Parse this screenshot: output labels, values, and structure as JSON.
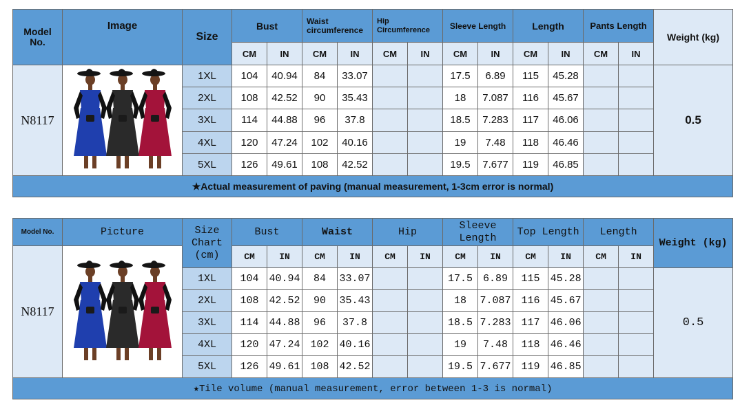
{
  "table1": {
    "header": {
      "model_no": "Model\nNo.",
      "image": "Image",
      "size": "Size",
      "bust": "Bust",
      "waist": "Waist\ncircumference",
      "hip": "Hip\nCircumference",
      "sleeve": "Sleeve Length",
      "length": "Length",
      "pants_length": "Pants Length",
      "weight": "Weight (kg)"
    },
    "units": [
      "CM",
      "IN",
      "CM",
      "IN",
      "CM",
      "IN",
      "CM",
      "IN",
      "CM",
      "IN",
      "CM",
      "IN"
    ],
    "model": "N8117",
    "weight_value": "0.5",
    "rows": [
      {
        "size": "1XL",
        "bust_cm": "104",
        "bust_in": "40.94",
        "waist_cm": "84",
        "waist_in": "33.07",
        "sleeve_cm": "17.5",
        "sleeve_in": "6.89",
        "len_cm": "115",
        "len_in": "45.28"
      },
      {
        "size": "2XL",
        "bust_cm": "108",
        "bust_in": "42.52",
        "waist_cm": "90",
        "waist_in": "35.43",
        "sleeve_cm": "18",
        "sleeve_in": "7.087",
        "len_cm": "116",
        "len_in": "45.67"
      },
      {
        "size": "3XL",
        "bust_cm": "114",
        "bust_in": "44.88",
        "waist_cm": "96",
        "waist_in": "37.8",
        "sleeve_cm": "18.5",
        "sleeve_in": "7.283",
        "len_cm": "117",
        "len_in": "46.06"
      },
      {
        "size": "4XL",
        "bust_cm": "120",
        "bust_in": "47.24",
        "waist_cm": "102",
        "waist_in": "40.16",
        "sleeve_cm": "19",
        "sleeve_in": "7.48",
        "len_cm": "118",
        "len_in": "46.46"
      },
      {
        "size": "5XL",
        "bust_cm": "126",
        "bust_in": "49.61",
        "waist_cm": "108",
        "waist_in": "42.52",
        "sleeve_cm": "19.5",
        "sleeve_in": "7.677",
        "len_cm": "119",
        "len_in": "46.85"
      }
    ],
    "footer": "★Actual measurement of paving (manual measurement, 1-3cm error is normal)"
  },
  "table2": {
    "header": {
      "model_no": "Model No.",
      "picture": "Picture",
      "size_chart": "Size\nChart\n(cm)",
      "bust": "Bust",
      "waist": "Waist",
      "hip": "Hip",
      "sleeve": "Sleeve\nLength",
      "top_length": "Top Length",
      "length": "Length",
      "weight": "Weight (kg)"
    },
    "units": [
      "CM",
      "IN",
      "CM",
      "IN",
      "CM",
      "IN",
      "CM",
      "IN",
      "CM",
      "IN",
      "CM",
      "IN"
    ],
    "model": "N8117",
    "weight_value": "0.5",
    "rows": [
      {
        "size": "1XL",
        "bust_cm": "104",
        "bust_in": "40.94",
        "waist_cm": "84",
        "waist_in": "33.07",
        "sleeve_cm": "17.5",
        "sleeve_in": "6.89",
        "len_cm": "115",
        "len_in": "45.28"
      },
      {
        "size": "2XL",
        "bust_cm": "108",
        "bust_in": "42.52",
        "waist_cm": "90",
        "waist_in": "35.43",
        "sleeve_cm": "18",
        "sleeve_in": "7.087",
        "len_cm": "116",
        "len_in": "45.67"
      },
      {
        "size": "3XL",
        "bust_cm": "114",
        "bust_in": "44.88",
        "waist_cm": "96",
        "waist_in": "37.8",
        "sleeve_cm": "18.5",
        "sleeve_in": "7.283",
        "len_cm": "117",
        "len_in": "46.06"
      },
      {
        "size": "4XL",
        "bust_cm": "120",
        "bust_in": "47.24",
        "waist_cm": "102",
        "waist_in": "40.16",
        "sleeve_cm": "19",
        "sleeve_in": "7.48",
        "len_cm": "118",
        "len_in": "46.46"
      },
      {
        "size": "5XL",
        "bust_cm": "126",
        "bust_in": "49.61",
        "waist_cm": "108",
        "waist_in": "42.52",
        "sleeve_cm": "19.5",
        "sleeve_in": "7.677",
        "len_cm": "119",
        "len_in": "46.85"
      }
    ],
    "footer": "★Tile volume (manual measurement, error between 1-3 is normal)"
  },
  "photo": {
    "dress_colors": [
      "#1f3fae",
      "#2a2a2a",
      "#a3133a"
    ],
    "skin_color": "#6b3f26",
    "hat_color": "#151515"
  }
}
